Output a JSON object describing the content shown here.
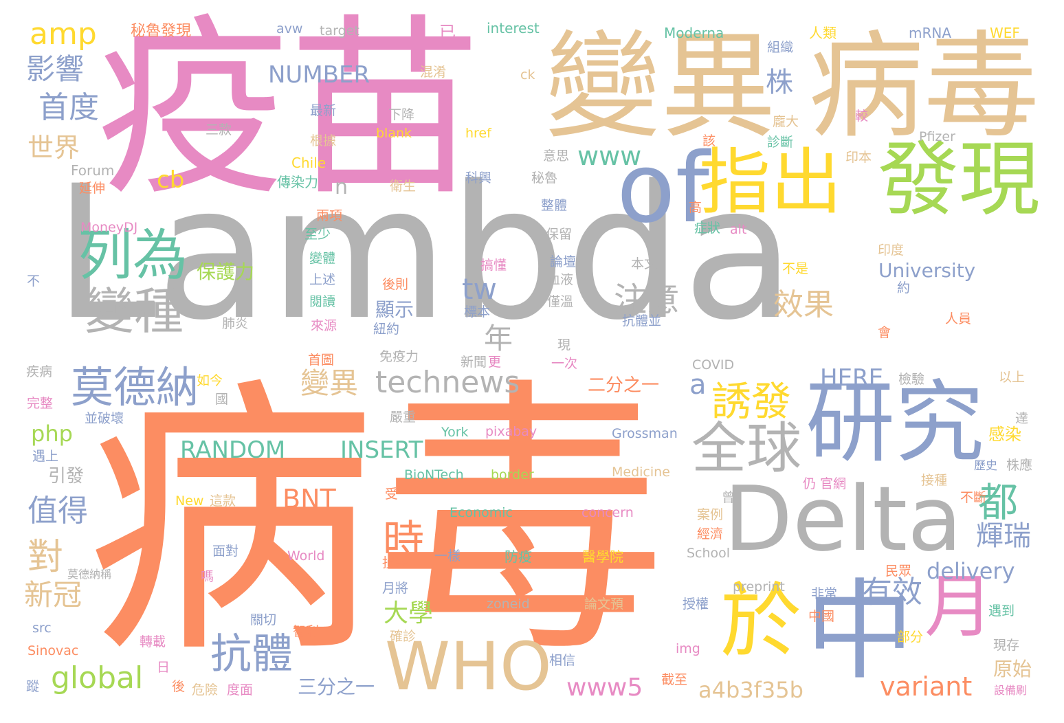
{
  "palette": {
    "gray": "#b3b3b3",
    "pink": "#e78ac3",
    "tan": "#e5c494",
    "orange": "#fc8d62",
    "blue": "#8da0cb",
    "green": "#66c2a5",
    "lime": "#a6d854",
    "yellow": "#ffd92f"
  },
  "words": [
    {
      "text": "Lambda",
      "color": "gray"
    },
    {
      "text": "疫苗",
      "color": "pink"
    },
    {
      "text": "病毒",
      "color": "orange"
    },
    {
      "text": "變異",
      "color": "tan"
    },
    {
      "text": "病毒",
      "color": "tan"
    },
    {
      "text": "of",
      "color": "blue"
    },
    {
      "text": "指出",
      "color": "yellow"
    },
    {
      "text": "發現",
      "color": "lime"
    },
    {
      "text": "列為",
      "color": "green"
    },
    {
      "text": "研究",
      "color": "blue"
    },
    {
      "text": "Delta",
      "color": "gray"
    },
    {
      "text": "中",
      "color": "blue"
    },
    {
      "text": "於",
      "color": "yellow"
    },
    {
      "text": "月",
      "color": "pink"
    },
    {
      "text": "WHO",
      "color": "tan"
    },
    {
      "text": "全球",
      "color": "gray"
    },
    {
      "text": "莫德納",
      "color": "blue"
    },
    {
      "text": "變種",
      "color": "gray"
    },
    {
      "text": "technews",
      "color": "gray"
    },
    {
      "text": "誘發",
      "color": "yellow"
    },
    {
      "text": "抗體",
      "color": "blue"
    },
    {
      "text": "時",
      "color": "orange"
    },
    {
      "text": "都",
      "color": "green"
    },
    {
      "text": "amp",
      "color": "yellow"
    },
    {
      "text": "秘魯發現",
      "color": "orange"
    },
    {
      "text": "avw",
      "color": "blue"
    },
    {
      "text": "target",
      "color": "gray"
    },
    {
      "text": "已",
      "color": "pink"
    },
    {
      "text": "interest",
      "color": "green"
    },
    {
      "text": "Moderna",
      "color": "green"
    },
    {
      "text": "人類",
      "color": "yellow"
    },
    {
      "text": "mRNA",
      "color": "blue"
    },
    {
      "text": "WEF",
      "color": "yellow"
    },
    {
      "text": "影響",
      "color": "blue"
    },
    {
      "text": "NUMBER",
      "color": "blue"
    },
    {
      "text": "混淆",
      "color": "tan"
    },
    {
      "text": "組織",
      "color": "blue"
    },
    {
      "text": "ck",
      "color": "tan"
    },
    {
      "text": "株",
      "color": "blue"
    },
    {
      "text": "首度",
      "color": "blue"
    },
    {
      "text": "最新",
      "color": "blue"
    },
    {
      "text": "下降",
      "color": "gray"
    },
    {
      "text": "三款",
      "color": "gray"
    },
    {
      "text": "blank",
      "color": "yellow"
    },
    {
      "text": "href",
      "color": "yellow"
    },
    {
      "text": "龐大",
      "color": "tan"
    },
    {
      "text": "較",
      "color": "pink"
    },
    {
      "text": "世界",
      "color": "tan"
    },
    {
      "text": "根據",
      "color": "tan"
    },
    {
      "text": "診斷",
      "color": "green"
    },
    {
      "text": "該",
      "color": "orange"
    },
    {
      "text": "Pfizer",
      "color": "gray"
    },
    {
      "text": "印本",
      "color": "tan"
    },
    {
      "text": "www",
      "color": "green"
    },
    {
      "text": "意思",
      "color": "gray"
    },
    {
      "text": "Forum",
      "color": "gray"
    },
    {
      "text": "Chile",
      "color": "yellow"
    },
    {
      "text": "傳染力",
      "color": "green"
    },
    {
      "text": "衛生",
      "color": "tan"
    },
    {
      "text": "科興",
      "color": "blue"
    },
    {
      "text": "秘魯",
      "color": "gray"
    },
    {
      "text": "cb",
      "color": "yellow"
    },
    {
      "text": "延伸",
      "color": "orange"
    },
    {
      "text": "n",
      "color": "gray"
    },
    {
      "text": "高",
      "color": "orange"
    },
    {
      "text": "整體",
      "color": "blue"
    },
    {
      "text": "兩項",
      "color": "orange"
    },
    {
      "text": "MoneyDJ",
      "color": "pink"
    },
    {
      "text": "至少",
      "color": "green"
    },
    {
      "text": "保留",
      "color": "gray"
    },
    {
      "text": "症狀",
      "color": "green"
    },
    {
      "text": "alt",
      "color": "pink"
    },
    {
      "text": "保護力",
      "color": "lime"
    },
    {
      "text": "變體",
      "color": "green"
    },
    {
      "text": "搞懂",
      "color": "pink"
    },
    {
      "text": "論壇",
      "color": "blue"
    },
    {
      "text": "本文",
      "color": "gray"
    },
    {
      "text": "印度",
      "color": "tan"
    },
    {
      "text": "不是",
      "color": "yellow"
    },
    {
      "text": "University",
      "color": "blue"
    },
    {
      "text": "不",
      "color": "blue"
    },
    {
      "text": "上述",
      "color": "blue"
    },
    {
      "text": "後則",
      "color": "orange"
    },
    {
      "text": "血液",
      "color": "gray"
    },
    {
      "text": "約",
      "color": "blue"
    },
    {
      "text": "tw",
      "color": "blue"
    },
    {
      "text": "注意",
      "color": "gray"
    },
    {
      "text": "閱讀",
      "color": "green"
    },
    {
      "text": "顯示",
      "color": "blue"
    },
    {
      "text": "標本",
      "color": "blue"
    },
    {
      "text": "僅溫",
      "color": "gray"
    },
    {
      "text": "效果",
      "color": "tan"
    },
    {
      "text": "人員",
      "color": "orange"
    },
    {
      "text": "肺炎",
      "color": "gray"
    },
    {
      "text": "來源",
      "color": "pink"
    },
    {
      "text": "紐約",
      "color": "blue"
    },
    {
      "text": "抗體並",
      "color": "blue"
    },
    {
      "text": "年",
      "color": "gray"
    },
    {
      "text": "會",
      "color": "orange"
    },
    {
      "text": "現",
      "color": "gray"
    },
    {
      "text": "首圖",
      "color": "orange"
    },
    {
      "text": "免疫力",
      "color": "gray"
    },
    {
      "text": "新聞",
      "color": "gray"
    },
    {
      "text": "更",
      "color": "pink"
    },
    {
      "text": "一次",
      "color": "pink"
    },
    {
      "text": "COVID",
      "color": "gray"
    },
    {
      "text": "疾病",
      "color": "gray"
    },
    {
      "text": "如今",
      "color": "yellow"
    },
    {
      "text": "國",
      "color": "gray"
    },
    {
      "text": "變異",
      "color": "tan"
    },
    {
      "text": "二分之一",
      "color": "orange"
    },
    {
      "text": "HERE",
      "color": "blue"
    },
    {
      "text": "檢驗",
      "color": "gray"
    },
    {
      "text": "以上",
      "color": "tan"
    },
    {
      "text": "完整",
      "color": "pink"
    },
    {
      "text": "a",
      "color": "blue"
    },
    {
      "text": "並破壞",
      "color": "blue"
    },
    {
      "text": "嚴重",
      "color": "gray"
    },
    {
      "text": "達",
      "color": "gray"
    },
    {
      "text": "php",
      "color": "lime"
    },
    {
      "text": "York",
      "color": "green"
    },
    {
      "text": "pixabay",
      "color": "pink"
    },
    {
      "text": "Grossman",
      "color": "blue"
    },
    {
      "text": "感染",
      "color": "yellow"
    },
    {
      "text": "RANDOM",
      "color": "green"
    },
    {
      "text": "INSERT",
      "color": "green"
    },
    {
      "text": "遇上",
      "color": "blue"
    },
    {
      "text": "歷史",
      "color": "blue"
    },
    {
      "text": "株應",
      "color": "gray"
    },
    {
      "text": "引發",
      "color": "gray"
    },
    {
      "text": "BioNTech",
      "color": "green"
    },
    {
      "text": "border",
      "color": "lime"
    },
    {
      "text": "Medicine",
      "color": "tan"
    },
    {
      "text": "接種",
      "color": "tan"
    },
    {
      "text": "受",
      "color": "orange"
    },
    {
      "text": "仍 官網",
      "color": "pink"
    },
    {
      "text": "值得",
      "color": "blue"
    },
    {
      "text": "BNT",
      "color": "orange"
    },
    {
      "text": "New",
      "color": "yellow"
    },
    {
      "text": "這款",
      "color": "tan"
    },
    {
      "text": "曾",
      "color": "gray"
    },
    {
      "text": "不斷",
      "color": "orange"
    },
    {
      "text": "Economic",
      "color": "green"
    },
    {
      "text": "concern",
      "color": "pink"
    },
    {
      "text": "案例",
      "color": "tan"
    },
    {
      "text": "輝瑞",
      "color": "blue"
    },
    {
      "text": "經濟",
      "color": "orange"
    },
    {
      "text": "對",
      "color": "tan"
    },
    {
      "text": "面對",
      "color": "blue"
    },
    {
      "text": "World",
      "color": "pink"
    },
    {
      "text": "損失",
      "color": "orange"
    },
    {
      "text": "一樣",
      "color": "blue"
    },
    {
      "text": "防疫",
      "color": "green"
    },
    {
      "text": "醫學院",
      "color": "yellow"
    },
    {
      "text": "School",
      "color": "gray"
    },
    {
      "text": "delivery",
      "color": "blue"
    },
    {
      "text": "莫德納稱",
      "color": "gray"
    },
    {
      "text": "嗎",
      "color": "pink"
    },
    {
      "text": "民眾",
      "color": "orange"
    },
    {
      "text": "新冠",
      "color": "tan"
    },
    {
      "text": "月將",
      "color": "blue"
    },
    {
      "text": "preprint",
      "color": "gray"
    },
    {
      "text": "非常",
      "color": "blue"
    },
    {
      "text": "有效",
      "color": "blue"
    },
    {
      "text": "大學",
      "color": "lime"
    },
    {
      "text": "zoneid",
      "color": "gray"
    },
    {
      "text": "論文預",
      "color": "tan"
    },
    {
      "text": "授權",
      "color": "blue"
    },
    {
      "text": "中國",
      "color": "orange"
    },
    {
      "text": "遇到",
      "color": "green"
    },
    {
      "text": "src",
      "color": "blue"
    },
    {
      "text": "關切",
      "color": "blue"
    },
    {
      "text": "智利",
      "color": "orange"
    },
    {
      "text": "確診",
      "color": "tan"
    },
    {
      "text": "部分",
      "color": "yellow"
    },
    {
      "text": "轉載",
      "color": "pink"
    },
    {
      "text": "img",
      "color": "pink"
    },
    {
      "text": "現存",
      "color": "gray"
    },
    {
      "text": "Sinovac",
      "color": "orange"
    },
    {
      "text": "日",
      "color": "pink"
    },
    {
      "text": "相信",
      "color": "blue"
    },
    {
      "text": "原始",
      "color": "tan"
    },
    {
      "text": "global",
      "color": "lime"
    },
    {
      "text": "www5",
      "color": "pink"
    },
    {
      "text": "variant",
      "color": "orange"
    },
    {
      "text": "三分之一",
      "color": "blue"
    },
    {
      "text": "a4b3f35b",
      "color": "tan"
    },
    {
      "text": "截至",
      "color": "orange"
    },
    {
      "text": "蹤",
      "color": "blue"
    },
    {
      "text": "後",
      "color": "orange"
    },
    {
      "text": "危險",
      "color": "tan"
    },
    {
      "text": "度面",
      "color": "pink"
    },
    {
      "text": "設備刷",
      "color": "pink"
    }
  ]
}
